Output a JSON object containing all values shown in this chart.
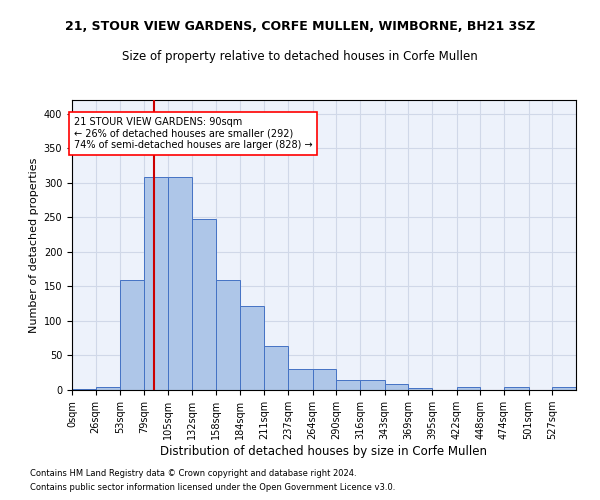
{
  "title": "21, STOUR VIEW GARDENS, CORFE MULLEN, WIMBORNE, BH21 3SZ",
  "subtitle": "Size of property relative to detached houses in Corfe Mullen",
  "xlabel": "Distribution of detached houses by size in Corfe Mullen",
  "ylabel": "Number of detached properties",
  "footnote1": "Contains HM Land Registry data © Crown copyright and database right 2024.",
  "footnote2": "Contains public sector information licensed under the Open Government Licence v3.0.",
  "bin_labels": [
    "0sqm",
    "26sqm",
    "53sqm",
    "79sqm",
    "105sqm",
    "132sqm",
    "158sqm",
    "184sqm",
    "211sqm",
    "237sqm",
    "264sqm",
    "290sqm",
    "316sqm",
    "343sqm",
    "369sqm",
    "395sqm",
    "422sqm",
    "448sqm",
    "474sqm",
    "501sqm",
    "527sqm"
  ],
  "bin_edges": [
    0,
    26,
    53,
    79,
    105,
    132,
    158,
    184,
    211,
    237,
    264,
    290,
    316,
    343,
    369,
    395,
    422,
    448,
    474,
    501,
    527,
    553
  ],
  "bar_heights": [
    2,
    5,
    160,
    308,
    308,
    247,
    160,
    122,
    64,
    30,
    30,
    15,
    15,
    8,
    3,
    0,
    4,
    0,
    4,
    0,
    4
  ],
  "bar_color": "#aec6e8",
  "bar_edge_color": "#4472c4",
  "grid_color": "#d0d8e8",
  "background_color": "#edf2fb",
  "property_size": 90,
  "red_line_color": "#cc0000",
  "annotation_line1": "21 STOUR VIEW GARDENS: 90sqm",
  "annotation_line2": "← 26% of detached houses are smaller (292)",
  "annotation_line3": "74% of semi-detached houses are larger (828) →",
  "ylim": [
    0,
    420
  ],
  "yticks": [
    0,
    50,
    100,
    150,
    200,
    250,
    300,
    350,
    400
  ],
  "title_fontsize": 9,
  "subtitle_fontsize": 8.5,
  "xlabel_fontsize": 8.5,
  "ylabel_fontsize": 8,
  "tick_fontsize": 7,
  "footnote_fontsize": 6,
  "annot_fontsize": 7
}
